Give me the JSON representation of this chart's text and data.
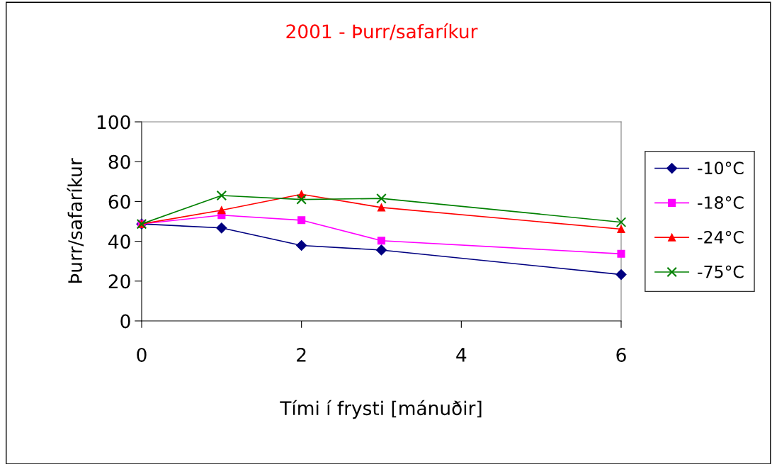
{
  "chart_data": {
    "type": "line",
    "title": "2001 - Þurr/safaríkur",
    "xlabel": "Tími í frysti [mánuðir]",
    "ylabel": "Þurr/safaríkur",
    "x": [
      0,
      1,
      2,
      3,
      6
    ],
    "series": [
      {
        "name": "-10°C",
        "color": "#000080",
        "marker": "diamond",
        "values": [
          48.7,
          46.7,
          37.9,
          35.6,
          23.3
        ]
      },
      {
        "name": "-18°C",
        "color": "#ff00ff",
        "marker": "square",
        "values": [
          48.7,
          53.1,
          50.6,
          40.3,
          33.7
        ]
      },
      {
        "name": "-24°C",
        "color": "#ff0000",
        "marker": "triangle",
        "values": [
          48.7,
          55.6,
          63.6,
          57.0,
          46.1
        ]
      },
      {
        "name": "-75°C",
        "color": "#008000",
        "marker": "cross",
        "values": [
          48.7,
          63.0,
          61.0,
          61.5,
          49.6
        ]
      }
    ],
    "xlim": [
      0,
      6
    ],
    "xticks": [
      0,
      2,
      4,
      6
    ],
    "ylim": [
      0,
      100
    ],
    "yticks": [
      0,
      20,
      40,
      60,
      80,
      100
    ],
    "grid": false,
    "legend": "right",
    "line_style": "solid"
  }
}
